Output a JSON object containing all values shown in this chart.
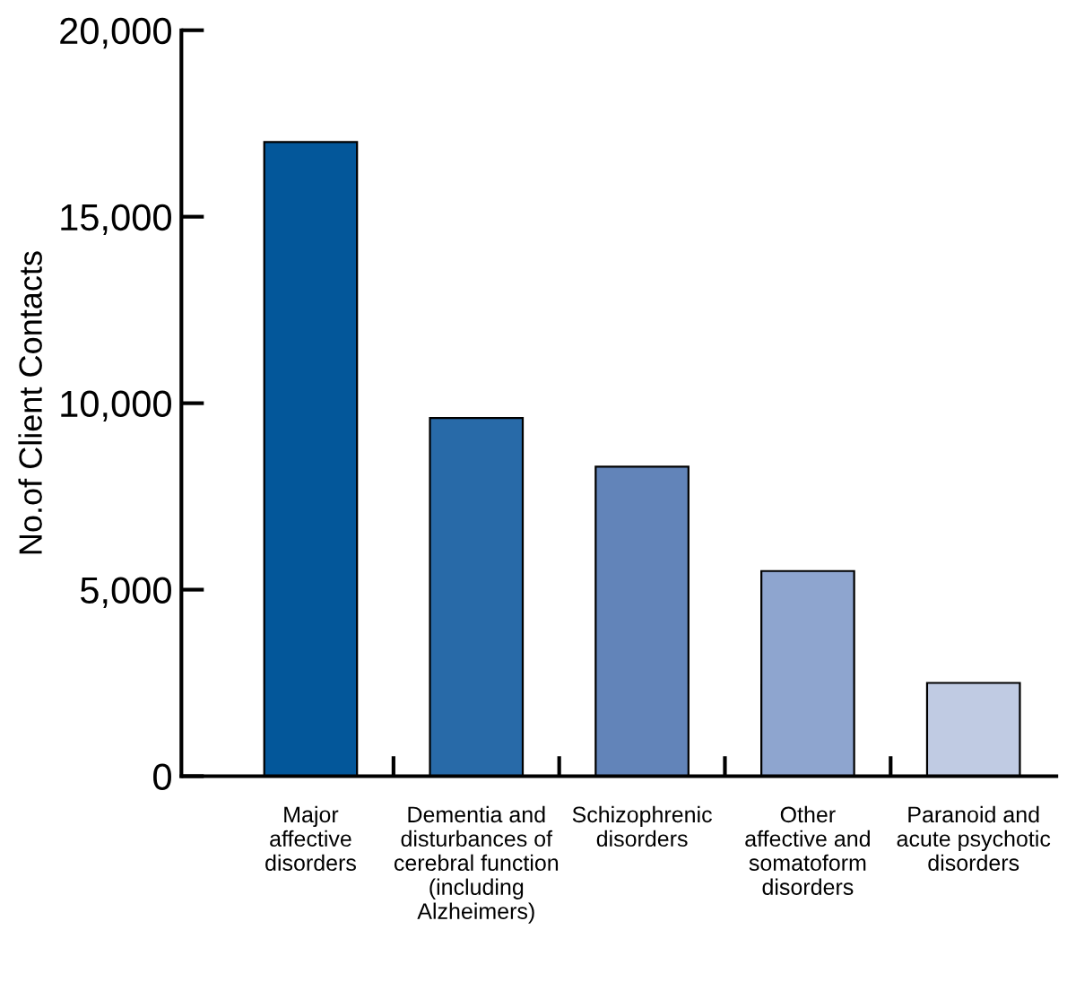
{
  "chart_data": {
    "type": "bar",
    "ylabel": "No.of Client Contacts",
    "categories": [
      "Major\naffective\ndisorders",
      "Dementia and\ndisturbances of\ncerebral function\n(including\nAlzheimers)",
      "Schizophrenic\ndisorders",
      "Other\naffective and\nsomatoform\ndisorders",
      "Paranoid and\nacute psychotic\ndisorders"
    ],
    "values": [
      17000,
      9600,
      8300,
      5500,
      2500
    ],
    "colors": [
      "#03579a",
      "#286aa8",
      "#6284b9",
      "#8ea5cf",
      "#c0cbe3"
    ],
    "ylim": [
      0,
      20000
    ],
    "yticks": [
      {
        "value": 0,
        "label": "0"
      },
      {
        "value": 5000,
        "label": "5,000"
      },
      {
        "value": 10000,
        "label": "10,000"
      },
      {
        "value": 15000,
        "label": "15,000"
      },
      {
        "value": 20000,
        "label": "20,000"
      }
    ],
    "grid": false
  }
}
